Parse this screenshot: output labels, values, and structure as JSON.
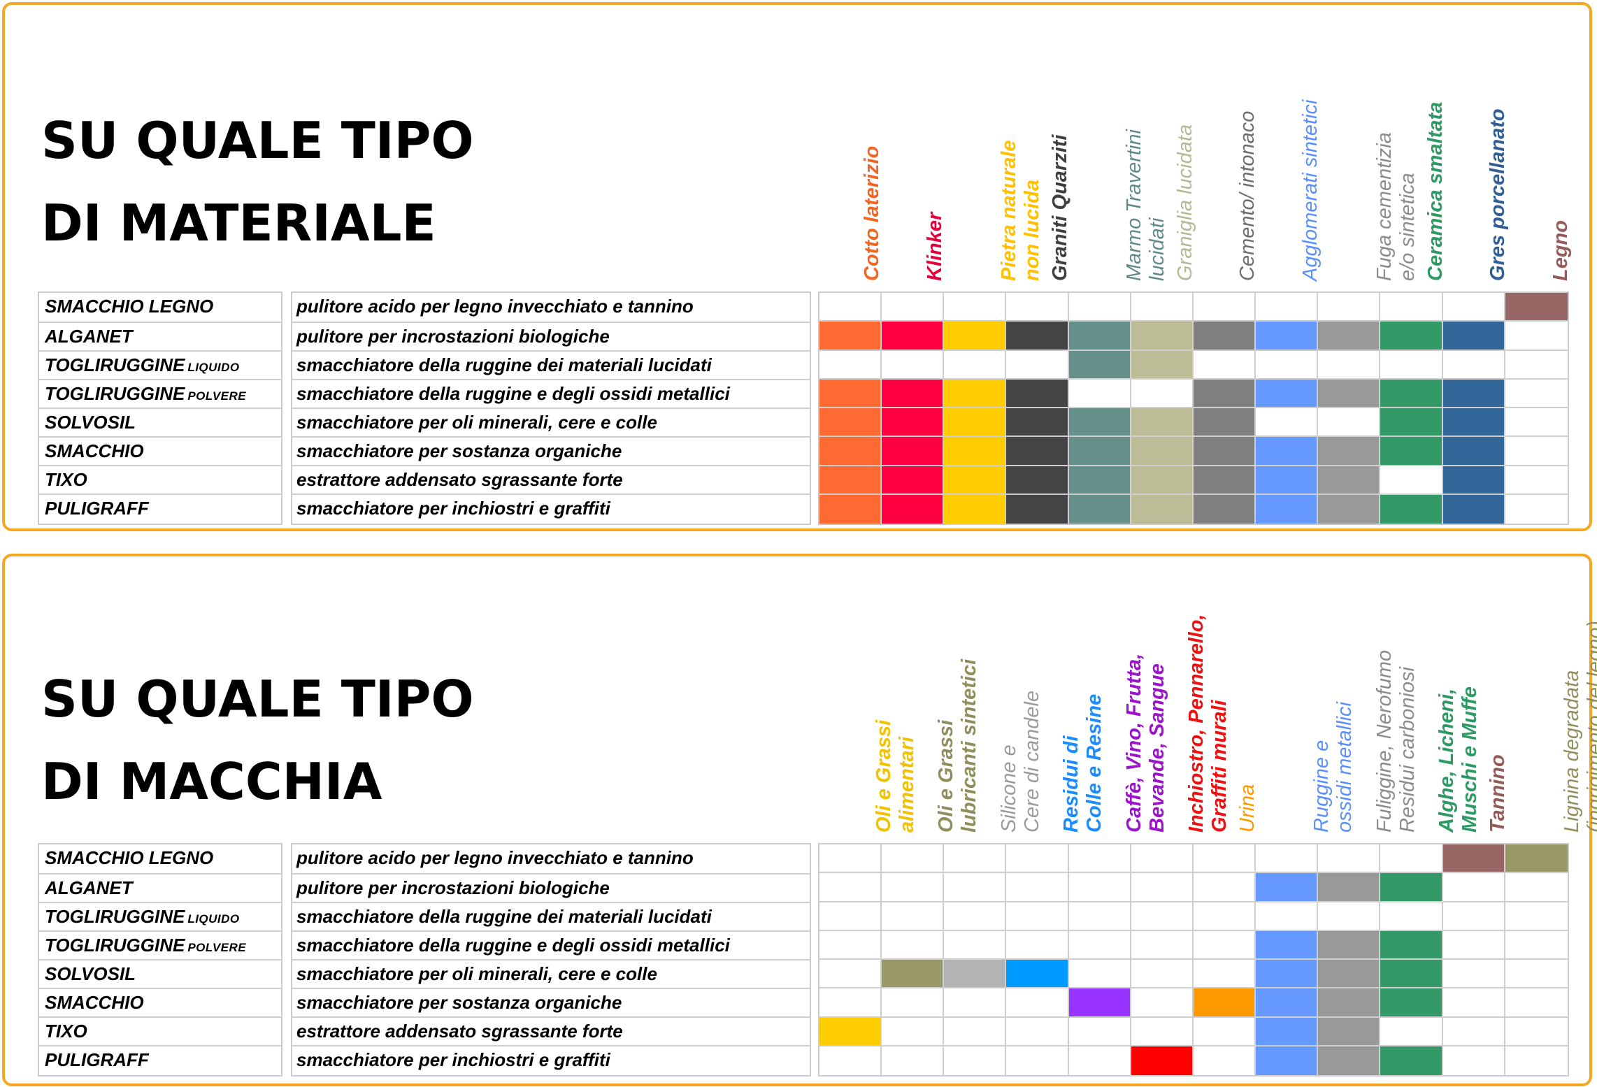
{
  "panels": [
    {
      "id": "material",
      "title_lines": [
        "SU QUALE TIPO",
        "DI MATERIALE"
      ],
      "columns": [
        {
          "lines": [
            "Cotto laterizio"
          ],
          "color": "#f26522",
          "bold": true
        },
        {
          "lines": [
            "Klinker"
          ],
          "color": "#e8003d",
          "bold": true
        },
        {
          "lines": [
            "Pietra naturale",
            "non lucida"
          ],
          "color": "#ffc000",
          "bold": true
        },
        {
          "lines": [
            "Graniti Quarziti"
          ],
          "color": "#404040",
          "bold": true
        },
        {
          "lines": [
            "Marmo Travertini",
            "lucidati"
          ],
          "color": "#5f8b84",
          "bold": false
        },
        {
          "lines": [
            "Graniglia lucidata"
          ],
          "color": "#b7b795",
          "bold": false
        },
        {
          "lines": [
            "Cemento/ intonaco"
          ],
          "color": "#6d6d6d",
          "bold": false
        },
        {
          "lines": [
            "Agglomerati sintetici"
          ],
          "color": "#5b8ff9",
          "bold": false
        },
        {
          "lines": [
            "Fuga cementizia",
            "e/o sintetica"
          ],
          "color": "#8c8c8c",
          "bold": false
        },
        {
          "lines": [
            "Ceramica smaltata"
          ],
          "color": "#2e9963",
          "bold": true
        },
        {
          "lines": [
            "Gres porcellanato"
          ],
          "color": "#2f5d94",
          "bold": true
        },
        {
          "lines": [
            "Legno"
          ],
          "color": "#945a5a",
          "bold": true
        }
      ],
      "fills": [
        "#ff6a33",
        "#ff0040",
        "#ffcc00",
        "#444444",
        "#66908a",
        "#bcbc96",
        "#7f7f7f",
        "#6699ff",
        "#999999",
        "#339966",
        "#336699",
        "#996666"
      ],
      "matrix": [
        [
          0,
          0,
          0,
          0,
          0,
          0,
          0,
          0,
          0,
          0,
          0,
          1
        ],
        [
          1,
          1,
          1,
          1,
          1,
          1,
          1,
          1,
          1,
          1,
          1,
          0
        ],
        [
          0,
          0,
          0,
          0,
          1,
          1,
          0,
          0,
          0,
          0,
          0,
          0
        ],
        [
          1,
          1,
          1,
          1,
          0,
          0,
          1,
          1,
          1,
          1,
          1,
          0
        ],
        [
          1,
          1,
          1,
          1,
          1,
          1,
          1,
          0,
          0,
          1,
          1,
          0
        ],
        [
          1,
          1,
          1,
          1,
          1,
          1,
          1,
          1,
          1,
          1,
          1,
          0
        ],
        [
          1,
          1,
          1,
          1,
          1,
          1,
          1,
          1,
          1,
          0,
          1,
          0
        ],
        [
          1,
          1,
          1,
          1,
          1,
          1,
          1,
          1,
          1,
          1,
          1,
          0
        ]
      ]
    },
    {
      "id": "stain",
      "title_lines": [
        "SU QUALE TIPO",
        "DI MACCHIA"
      ],
      "columns": [
        {
          "lines": [
            "Oli e Grassi",
            "alimentari"
          ],
          "color": "#f2c200",
          "bold": true
        },
        {
          "lines": [
            "Oli e Grassi",
            "lubricanti sintetici"
          ],
          "color": "#8f8f5e",
          "bold": true
        },
        {
          "lines": [
            "Silicone e",
            "Cere di candele"
          ],
          "color": "#9a9a9a",
          "bold": false
        },
        {
          "lines": [
            "Residui di",
            "Colle e Resine"
          ],
          "color": "#1a8cff",
          "bold": true
        },
        {
          "lines": [
            "Caffè, Vino, Frutta,",
            "Bevande, Sangue"
          ],
          "color": "#9b14c9",
          "bold": true
        },
        {
          "lines": [
            "Inchiostro, Pennarello,",
            "Graffiti murali"
          ],
          "color": "#ee1111",
          "bold": true
        },
        {
          "lines": [
            "Urina"
          ],
          "color": "#ff9900",
          "bold": false
        },
        {
          "lines": [
            "Ruggine e",
            "ossidi metallici"
          ],
          "color": "#5b8ff9",
          "bold": false
        },
        {
          "lines": [
            "Fuliggine, Nerofumo",
            "Residui carboniosi"
          ],
          "color": "#8c8c8c",
          "bold": false
        },
        {
          "lines": [
            "Alghe, Licheni,",
            "Muschi e Muffe"
          ],
          "color": "#2e9963",
          "bold": true
        },
        {
          "lines": [
            "Tannino"
          ],
          "color": "#945a5a",
          "bold": true
        },
        {
          "lines": [
            "Lignina degradata",
            "(ingrigimento del legno)"
          ],
          "color": "#8f8f5e",
          "bold": false
        }
      ],
      "fills": [
        "#ffcc00",
        "#999966",
        "#b3b3b3",
        "#0099ff",
        "#9933ff",
        "#ff0000",
        "#ff9900",
        "#6699ff",
        "#999999",
        "#339966",
        "#996666",
        "#999966"
      ],
      "matrix": [
        [
          0,
          0,
          0,
          0,
          0,
          0,
          0,
          0,
          0,
          0,
          1,
          1
        ],
        [
          0,
          0,
          0,
          0,
          0,
          0,
          0,
          1,
          1,
          1,
          0,
          0
        ],
        [
          0,
          0,
          0,
          0,
          0,
          0,
          0,
          0,
          0,
          0,
          0,
          0
        ],
        [
          0,
          0,
          0,
          0,
          0,
          0,
          0,
          1,
          1,
          1,
          0,
          0
        ],
        [
          0,
          1,
          1,
          1,
          0,
          0,
          0,
          1,
          1,
          1,
          0,
          0
        ],
        [
          0,
          0,
          0,
          0,
          1,
          0,
          1,
          1,
          1,
          1,
          0,
          0
        ],
        [
          1,
          0,
          0,
          0,
          0,
          0,
          0,
          1,
          1,
          0,
          0,
          0
        ],
        [
          0,
          0,
          0,
          0,
          0,
          1,
          0,
          1,
          1,
          1,
          0,
          0
        ]
      ]
    }
  ],
  "products": [
    {
      "name": "SMACCHIO LEGNO",
      "suffix": "",
      "description": "pulitore acido per legno invecchiato e tannino"
    },
    {
      "name": "ALGANET",
      "suffix": "",
      "description": "pulitore per incrostazioni biologiche"
    },
    {
      "name": "TOGLIRUGGINE",
      "suffix": "LIQUIDO",
      "description": "smacchiatore della ruggine dei materiali lucidati"
    },
    {
      "name": "TOGLIRUGGINE",
      "suffix": "POLVERE",
      "description": "smacchiatore della ruggine e degli ossidi metallici"
    },
    {
      "name": "SOLVOSIL",
      "suffix": "",
      "description": "smacchiatore per oli minerali, cere e colle"
    },
    {
      "name": "SMACCHIO",
      "suffix": "",
      "description": "smacchiatore per sostanza organiche"
    },
    {
      "name": "TIXO",
      "suffix": "",
      "description": "estrattore addensato sgrassante forte"
    },
    {
      "name": "PULIGRAFF",
      "suffix": "",
      "description": "smacchiatore per inchiostri e graffiti"
    }
  ]
}
